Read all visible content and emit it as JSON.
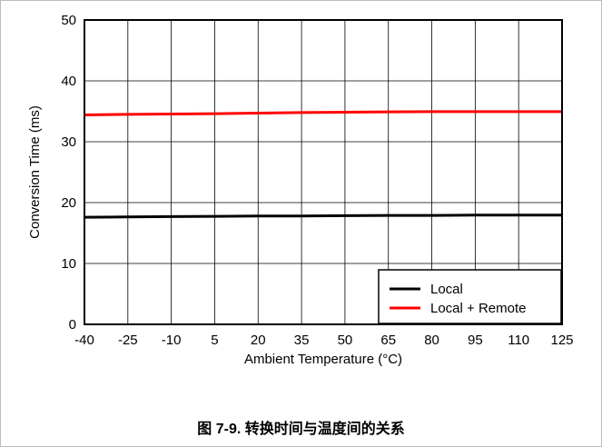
{
  "caption": "图 7-9. 转换时间与温度间的关系",
  "colors": {
    "local": "#000000",
    "local_remote": "#ff0000",
    "grid": "#000000"
  },
  "chart_data": {
    "type": "line",
    "xlabel": "Ambient Temperature (°C)",
    "ylabel": "Conversion Time (ms)",
    "xlim": [
      -40,
      125
    ],
    "ylim": [
      0,
      50
    ],
    "x_ticks": [
      -40,
      -25,
      -10,
      5,
      20,
      35,
      50,
      65,
      80,
      95,
      110,
      125
    ],
    "x_tick_labels": [
      "-40",
      "-25",
      "-10",
      "5",
      "20",
      "35",
      "50",
      "65",
      "80",
      "95",
      "110",
      "125"
    ],
    "y_ticks": [
      0,
      10,
      20,
      30,
      40,
      50
    ],
    "y_tick_labels": [
      "0",
      "10",
      "20",
      "30",
      "40",
      "50"
    ],
    "grid": true,
    "legend_position": "bottom-right",
    "series": [
      {
        "name": "Local",
        "color": "#000000",
        "x": [
          -40,
          -25,
          -10,
          5,
          20,
          35,
          50,
          65,
          80,
          95,
          110,
          125
        ],
        "y": [
          17.6,
          17.65,
          17.7,
          17.75,
          17.8,
          17.8,
          17.85,
          17.9,
          17.9,
          17.95,
          17.95,
          17.95
        ]
      },
      {
        "name": "Local + Remote",
        "color": "#ff0000",
        "x": [
          -40,
          -25,
          -10,
          5,
          20,
          35,
          50,
          65,
          80,
          95,
          110,
          125
        ],
        "y": [
          34.4,
          34.5,
          34.55,
          34.6,
          34.7,
          34.8,
          34.85,
          34.9,
          34.95,
          34.95,
          34.95,
          34.95
        ]
      }
    ]
  }
}
